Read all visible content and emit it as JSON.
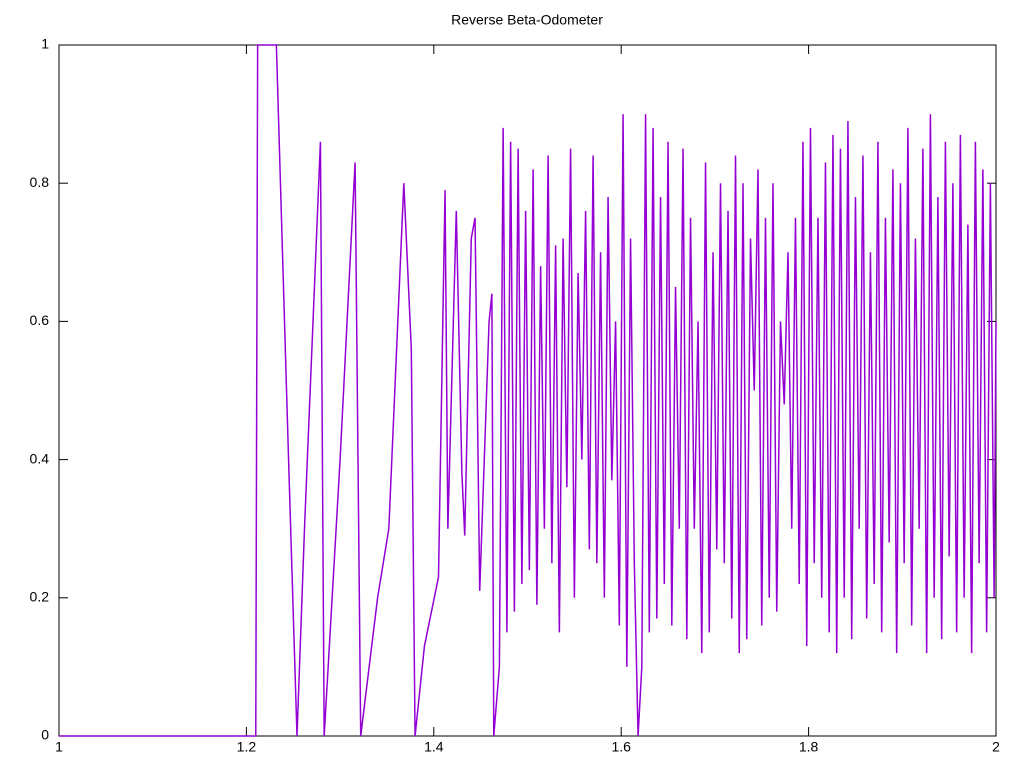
{
  "chart_data": {
    "type": "line",
    "title": "Reverse Beta-Odometer",
    "x": [
      1.0,
      1.21,
      1.212,
      1.232,
      1.245,
      1.254,
      1.262,
      1.279,
      1.283,
      1.3,
      1.316,
      1.322,
      1.34,
      1.352,
      1.368,
      1.376,
      1.38,
      1.39,
      1.405,
      1.412,
      1.415,
      1.424,
      1.43,
      1.433,
      1.44,
      1.444,
      1.449,
      1.459,
      1.462,
      1.464,
      1.47,
      1.474,
      1.478,
      1.482,
      1.486,
      1.49,
      1.494,
      1.498,
      1.502,
      1.506,
      1.51,
      1.514,
      1.518,
      1.522,
      1.526,
      1.53,
      1.534,
      1.538,
      1.542,
      1.546,
      1.55,
      1.554,
      1.558,
      1.562,
      1.566,
      1.57,
      1.574,
      1.578,
      1.582,
      1.586,
      1.59,
      1.594,
      1.598,
      1.602,
      1.606,
      1.61,
      1.614,
      1.618,
      1.622,
      1.626,
      1.63,
      1.634,
      1.638,
      1.642,
      1.646,
      1.65,
      1.654,
      1.658,
      1.662,
      1.666,
      1.67,
      1.674,
      1.678,
      1.682,
      1.686,
      1.69,
      1.694,
      1.698,
      1.702,
      1.706,
      1.71,
      1.714,
      1.718,
      1.722,
      1.726,
      1.73,
      1.734,
      1.738,
      1.742,
      1.746,
      1.75,
      1.754,
      1.758,
      1.762,
      1.766,
      1.77,
      1.774,
      1.778,
      1.782,
      1.786,
      1.79,
      1.794,
      1.798,
      1.802,
      1.806,
      1.81,
      1.814,
      1.818,
      1.822,
      1.826,
      1.83,
      1.834,
      1.838,
      1.842,
      1.846,
      1.85,
      1.854,
      1.858,
      1.862,
      1.866,
      1.87,
      1.874,
      1.878,
      1.882,
      1.886,
      1.89,
      1.894,
      1.898,
      1.902,
      1.906,
      1.91,
      1.914,
      1.918,
      1.922,
      1.926,
      1.93,
      1.934,
      1.938,
      1.942,
      1.946,
      1.95,
      1.954,
      1.958,
      1.962,
      1.966,
      1.97,
      1.974,
      1.978,
      1.982,
      1.986,
      1.99,
      1.994,
      1.998,
      2.0
    ],
    "series": [
      {
        "color": "#9400d3",
        "values": [
          0,
          0,
          1,
          1,
          0.4,
          0,
          0.3,
          0.86,
          0,
          0.4,
          0.83,
          0,
          0.2,
          0.3,
          0.8,
          0.56,
          0,
          0.13,
          0.23,
          0.79,
          0.3,
          0.76,
          0.38,
          0.29,
          0.72,
          0.75,
          0.21,
          0.6,
          0.64,
          0,
          0.1,
          0.88,
          0.15,
          0.86,
          0.18,
          0.85,
          0.22,
          0.76,
          0.24,
          0.82,
          0.19,
          0.68,
          0.3,
          0.84,
          0.25,
          0.71,
          0.15,
          0.72,
          0.36,
          0.85,
          0.2,
          0.67,
          0.4,
          0.76,
          0.27,
          0.84,
          0.25,
          0.7,
          0.2,
          0.78,
          0.37,
          0.6,
          0.16,
          0.9,
          0.1,
          0.72,
          0.25,
          0,
          0.1,
          0.9,
          0.15,
          0.88,
          0.17,
          0.78,
          0.22,
          0.86,
          0.16,
          0.65,
          0.3,
          0.85,
          0.14,
          0.75,
          0.3,
          0.6,
          0.12,
          0.83,
          0.15,
          0.7,
          0.27,
          0.8,
          0.25,
          0.76,
          0.17,
          0.84,
          0.12,
          0.8,
          0.14,
          0.72,
          0.5,
          0.82,
          0.16,
          0.75,
          0.2,
          0.8,
          0.18,
          0.6,
          0.48,
          0.7,
          0.3,
          0.75,
          0.22,
          0.86,
          0.13,
          0.88,
          0.25,
          0.75,
          0.2,
          0.83,
          0.15,
          0.87,
          0.12,
          0.85,
          0.2,
          0.89,
          0.14,
          0.78,
          0.3,
          0.84,
          0.17,
          0.7,
          0.22,
          0.86,
          0.15,
          0.75,
          0.28,
          0.82,
          0.12,
          0.8,
          0.25,
          0.88,
          0.16,
          0.72,
          0.3,
          0.85,
          0.12,
          0.9,
          0.2,
          0.78,
          0.14,
          0.86,
          0.26,
          0.8,
          0.15,
          0.87,
          0.2,
          0.74,
          0.12,
          0.86,
          0.25,
          0.82,
          0.15,
          0.8,
          0.2,
          0.6
        ]
      }
    ],
    "xlim": [
      1,
      2
    ],
    "ylim": [
      0,
      1
    ],
    "xticks": [
      1,
      1.2,
      1.4,
      1.6,
      1.8,
      2
    ],
    "yticks": [
      0,
      0.2,
      0.4,
      0.6,
      0.8,
      1
    ],
    "grid": false
  }
}
